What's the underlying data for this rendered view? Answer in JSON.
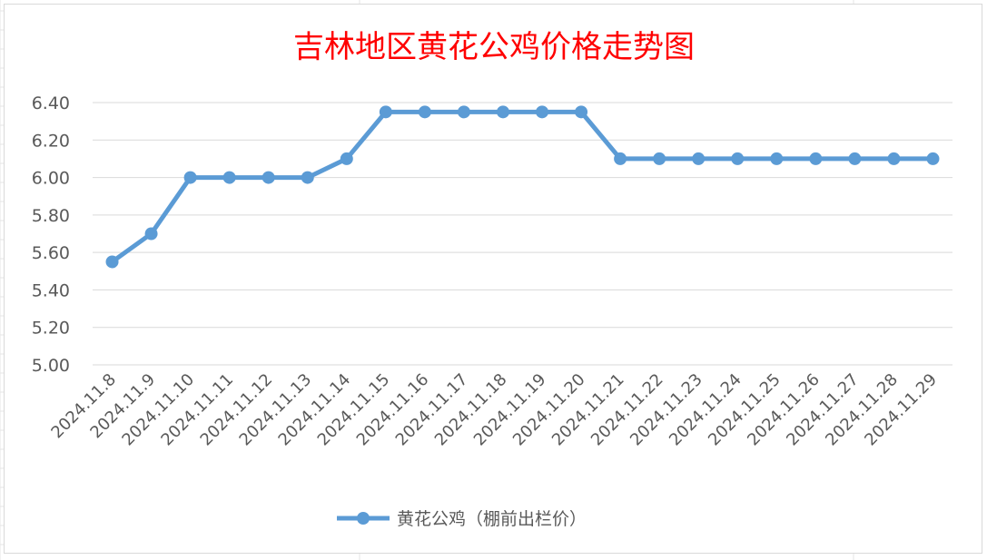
{
  "chart_data": {
    "type": "line",
    "title": "吉林地区黄花公鸡价格走势图",
    "xlabel": "",
    "ylabel": "",
    "categories": [
      "2024.11.8",
      "2024.11.9",
      "2024.11.10",
      "2024.11.11",
      "2024.11.12",
      "2024.11.13",
      "2024.11.14",
      "2024.11.15",
      "2024.11.16",
      "2024.11.17",
      "2024.11.18",
      "2024.11.19",
      "2024.11.20",
      "2024.11.21",
      "2024.11.22",
      "2024.11.23",
      "2024.11.24",
      "2024.11.25",
      "2024.11.26",
      "2024.11.27",
      "2024.11.28",
      "2024.11.29"
    ],
    "series": [
      {
        "name": "黄花公鸡（棚前出栏价）",
        "color": "#5b9bd5",
        "values": [
          5.55,
          5.7,
          6.0,
          6.0,
          6.0,
          6.0,
          6.1,
          6.35,
          6.35,
          6.35,
          6.35,
          6.35,
          6.35,
          6.1,
          6.1,
          6.1,
          6.1,
          6.1,
          6.1,
          6.1,
          6.1,
          6.1
        ]
      }
    ],
    "ylim": [
      5.0,
      6.4
    ],
    "yticks": [
      "5.00",
      "5.20",
      "5.40",
      "5.60",
      "5.80",
      "6.00",
      "6.20",
      "6.40"
    ],
    "grid": true,
    "legend_position": "bottom",
    "colors": {
      "title": "#ff0000",
      "gridline": "#d9d9d9",
      "tick_label": "#595959"
    }
  }
}
